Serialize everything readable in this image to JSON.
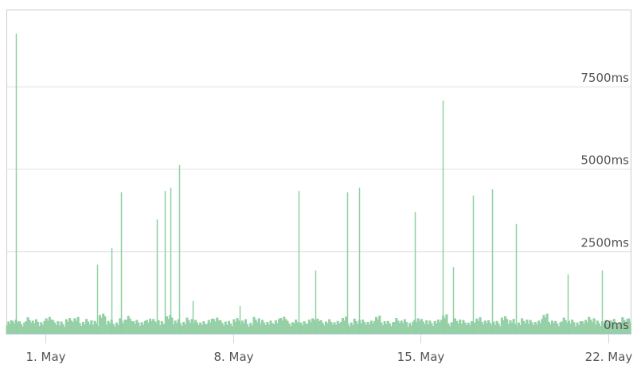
{
  "chart_data": {
    "type": "area",
    "title": "",
    "xlabel": "",
    "ylabel": "",
    "x_type": "datetime",
    "xlim": [
      "04-29 13:00",
      "05-22 20:00"
    ],
    "ylim": [
      0,
      10000
    ],
    "y_ticks": [
      0,
      2500,
      5000,
      7500
    ],
    "y_tick_labels": [
      "0ms",
      "2500ms",
      "5000ms",
      "7500ms"
    ],
    "x_ticks": [
      "05-01 00:00",
      "05-08 00:00",
      "05-15 00:00",
      "05-22 00:00"
    ],
    "x_tick_labels": [
      "1. May",
      "8. May",
      "15. May",
      "22. May"
    ],
    "grid": true,
    "legend": "none",
    "colors": {
      "series": "#8fd0a3",
      "fill": "#97cfa7",
      "grid": "#e0e0e0",
      "axis": "#ccd6eb",
      "frame": "#cccccc"
    },
    "series": [
      {
        "baseline": {
          "start": "04-29 12:00",
          "interval_hours": 6,
          "values": [
            320,
            380,
            290,
            410,
            350,
            300,
            460,
            330,
            280,
            390,
            420,
            310,
            360,
            300,
            520,
            340,
            290,
            380,
            450,
            330,
            300,
            410,
            360,
            290,
            480,
            350,
            310,
            400,
            330,
            290,
            370,
            440,
            320,
            300,
            390,
            350,
            280,
            420,
            330,
            310,
            360,
            470,
            300,
            340,
            290,
            380,
            410,
            320,
            350,
            300,
            430,
            290,
            370,
            340,
            310,
            460,
            330,
            300,
            390,
            350,
            280,
            420,
            360,
            310,
            340,
            500,
            300,
            380,
            330,
            290,
            410,
            350,
            320,
            300,
            440,
            360,
            290,
            380,
            330,
            310,
            520,
            350,
            300,
            400,
            340,
            290,
            370,
            420,
            310,
            330,
            360,
            300,
            410,
            380,
            320,
            290,
            350,
            330
          ]
        },
        "spikes": [
          [
            "04-29 21:40",
            9100
          ],
          [
            "05-02 22:00",
            2100
          ],
          [
            "05-03 11:00",
            2600
          ],
          [
            "05-03 20:00",
            4290
          ],
          [
            "05-05 04:00",
            3470
          ],
          [
            "05-05 11:00",
            4330
          ],
          [
            "05-05 16:00",
            4430
          ],
          [
            "05-05 23:30",
            5120
          ],
          [
            "05-06 12:00",
            1000
          ],
          [
            "05-08 06:00",
            840
          ],
          [
            "05-10 11:00",
            4330
          ],
          [
            "05-11 02:00",
            1920
          ],
          [
            "05-12 06:00",
            4290
          ],
          [
            "05-12 17:00",
            4430
          ],
          [
            "05-14 19:00",
            3690
          ],
          [
            "05-15 19:30",
            7070
          ],
          [
            "05-16 05:00",
            2020
          ],
          [
            "05-16 23:00",
            4190
          ],
          [
            "05-17 16:00",
            4380
          ],
          [
            "05-18 13:00",
            3330
          ],
          [
            "05-20 12:00",
            1800
          ],
          [
            "05-21 18:00",
            1920
          ]
        ]
      }
    ]
  }
}
